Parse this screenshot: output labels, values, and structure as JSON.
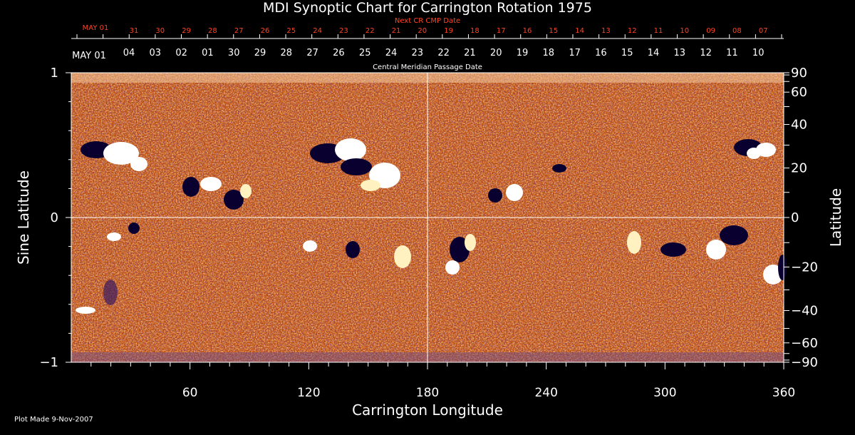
{
  "chart_data": {
    "type": "heatmap",
    "title": "MDI Synoptic Chart for Carrington Rotation 1975",
    "xlabel": "Carrington Longitude",
    "ylabel_left": "Sine Latitude",
    "ylabel_right": "Latitude",
    "xlim": [
      0,
      360
    ],
    "ylim": [
      -1,
      1
    ],
    "x_ticks": [
      60,
      120,
      180,
      240,
      300,
      360
    ],
    "y_ticks_left": [
      "1",
      "0",
      "−1"
    ],
    "y_ticks_right": [
      "90",
      "60",
      "40",
      "20",
      "0",
      "−20",
      "−40",
      "−60",
      "−90"
    ],
    "y_ticks_right_values": [
      90,
      60,
      40,
      20,
      0,
      -20,
      -40,
      -60,
      -90
    ],
    "cmp_axis_label": "Central Meridian Passage Date",
    "cmp_start_label": "MAY 01",
    "cmp_dates": [
      "04",
      "03",
      "02",
      "01",
      "30",
      "29",
      "28",
      "27",
      "26",
      "25",
      "24",
      "23",
      "22",
      "21",
      "20",
      "19",
      "18",
      "17",
      "16",
      "15",
      "14",
      "13",
      "12",
      "11",
      "10"
    ],
    "next_cr_label": "Next CR CMP Date",
    "next_cr_start_label": "MAY 01",
    "next_cr_dates": [
      "31",
      "30",
      "29",
      "28",
      "27",
      "26",
      "25",
      "24",
      "23",
      "22",
      "21",
      "20",
      "19",
      "18",
      "17",
      "16",
      "15",
      "14",
      "13",
      "12",
      "11",
      "10",
      "09",
      "08",
      "07"
    ],
    "colors": {
      "background": "#000000",
      "positive": "#ffffff",
      "negative": "#0a0030",
      "neutral": "#d85a10",
      "next_cr": "#ff4422"
    },
    "grid": "crosshair at 180° longitude and 0 latitude"
  },
  "footer": {
    "plot_made": "Plot Made  9-Nov-2007"
  }
}
